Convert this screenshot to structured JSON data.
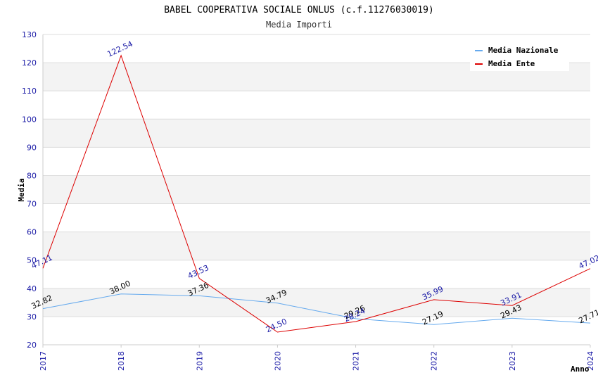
{
  "chart_data": {
    "type": "line",
    "title": "BABEL COOPERATIVA SOCIALE ONLUS (c.f.11276030019)",
    "subtitle": "Media Importi",
    "xlabel": "Anno",
    "ylabel": "Media",
    "categories": [
      "2017",
      "2018",
      "2019",
      "2020",
      "2021",
      "2022",
      "2023",
      "2024"
    ],
    "ylim": [
      20,
      130
    ],
    "yticks": [
      20,
      30,
      40,
      50,
      60,
      70,
      80,
      90,
      100,
      110,
      120,
      130
    ],
    "legend_position": "top-right",
    "series": [
      {
        "name": "Media Nazionale",
        "color": "#66aaee",
        "values": [
          32.82,
          38.0,
          37.36,
          34.79,
          29.26,
          27.19,
          29.43,
          27.71
        ],
        "labels": [
          "32.82",
          "38.00",
          "37.36",
          "34.79",
          "29.26",
          "27.19",
          "29.43",
          "27.71"
        ]
      },
      {
        "name": "Media Ente",
        "color": "#dd0000",
        "values": [
          47.11,
          122.54,
          43.53,
          24.5,
          28.24,
          35.99,
          33.91,
          47.02
        ],
        "labels": [
          "47.11",
          "122.54",
          "43.53",
          "24.50",
          "28.24",
          "35.99",
          "33.91",
          "47.02"
        ]
      }
    ]
  }
}
